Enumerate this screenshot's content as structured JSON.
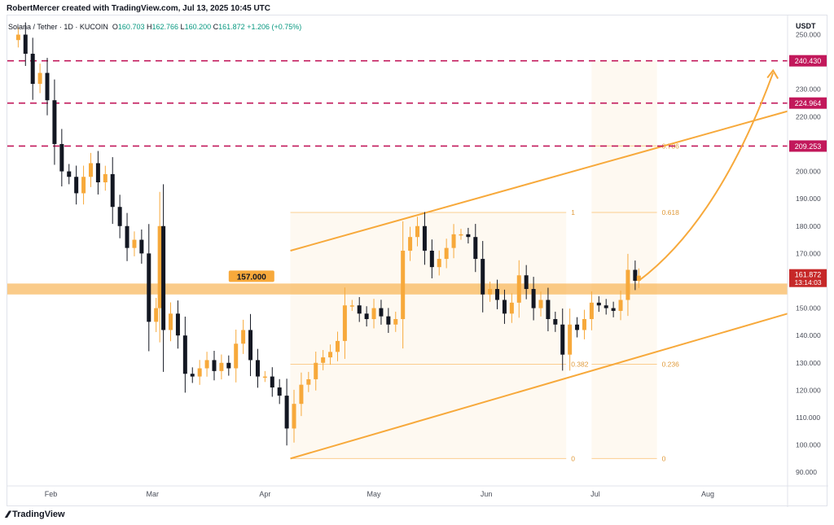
{
  "header": {
    "credit": "RobertMercer created with TradingView.com, Jul 13, 2025 10:45 UTC"
  },
  "symbol": {
    "name": "Solana / Tether · 1D · KUCOIN",
    "o_label": "O",
    "o": "160.703",
    "h_label": "H",
    "h": "162.766",
    "l_label": "L",
    "l": "160.200",
    "c_label": "C",
    "c": "161.872",
    "change": "+1.206 (+0.75%)"
  },
  "footer": {
    "brand": "TradingView"
  },
  "colors": {
    "accent": "#f7a93b",
    "bull": "#f7a93b",
    "bear": "#131722",
    "resistance": "#c2185b",
    "price_tag": "#c62828"
  },
  "chart_data": {
    "type": "candlestick",
    "currency_label": "USDT",
    "y_ticks": [
      90,
      100,
      110,
      120,
      130,
      140,
      150,
      160,
      170,
      180,
      190,
      200,
      210,
      220,
      230,
      240,
      250
    ],
    "ylim": [
      85,
      257
    ],
    "x_ticks": [
      {
        "label": "Feb",
        "date": "2025-02-01"
      },
      {
        "label": "Mar",
        "date": "2025-03-01"
      },
      {
        "label": "Apr",
        "date": "2025-04-01"
      },
      {
        "label": "May",
        "date": "2025-05-01"
      },
      {
        "label": "Jun",
        "date": "2025-06-01"
      },
      {
        "label": "Jul",
        "date": "2025-07-01"
      },
      {
        "label": "Aug",
        "date": "2025-08-01"
      }
    ],
    "x_range": [
      "2025-01-20",
      "2025-08-23"
    ],
    "closes": [
      {
        "date": "2025-01-20",
        "close": 248
      },
      {
        "date": "2025-01-23",
        "close": 250
      },
      {
        "date": "2025-01-25",
        "close": 243
      },
      {
        "date": "2025-01-27",
        "close": 232
      },
      {
        "date": "2025-01-29",
        "close": 236
      },
      {
        "date": "2025-01-31",
        "close": 226
      },
      {
        "date": "2025-02-02",
        "close": 210
      },
      {
        "date": "2025-02-04",
        "close": 200
      },
      {
        "date": "2025-02-06",
        "close": 198
      },
      {
        "date": "2025-02-08",
        "close": 192
      },
      {
        "date": "2025-02-10",
        "close": 198
      },
      {
        "date": "2025-02-12",
        "close": 203
      },
      {
        "date": "2025-02-14",
        "close": 196
      },
      {
        "date": "2025-02-16",
        "close": 199
      },
      {
        "date": "2025-02-18",
        "close": 187
      },
      {
        "date": "2025-02-20",
        "close": 180
      },
      {
        "date": "2025-02-22",
        "close": 172
      },
      {
        "date": "2025-02-24",
        "close": 175
      },
      {
        "date": "2025-02-26",
        "close": 170
      },
      {
        "date": "2025-02-28",
        "close": 145
      },
      {
        "date": "2025-03-02",
        "close": 150
      },
      {
        "date": "2025-03-03",
        "close": 180
      },
      {
        "date": "2025-03-04",
        "close": 142
      },
      {
        "date": "2025-03-06",
        "close": 148
      },
      {
        "date": "2025-03-08",
        "close": 140
      },
      {
        "date": "2025-03-10",
        "close": 126
      },
      {
        "date": "2025-03-12",
        "close": 125
      },
      {
        "date": "2025-03-14",
        "close": 128
      },
      {
        "date": "2025-03-16",
        "close": 131
      },
      {
        "date": "2025-03-18",
        "close": 127
      },
      {
        "date": "2025-03-20",
        "close": 130
      },
      {
        "date": "2025-03-22",
        "close": 128
      },
      {
        "date": "2025-03-24",
        "close": 137
      },
      {
        "date": "2025-03-26",
        "close": 142
      },
      {
        "date": "2025-03-28",
        "close": 131
      },
      {
        "date": "2025-03-30",
        "close": 125
      },
      {
        "date": "2025-04-01",
        "close": 125
      },
      {
        "date": "2025-04-03",
        "close": 121
      },
      {
        "date": "2025-04-05",
        "close": 118
      },
      {
        "date": "2025-04-07",
        "close": 106
      },
      {
        "date": "2025-04-09",
        "close": 115
      },
      {
        "date": "2025-04-11",
        "close": 122
      },
      {
        "date": "2025-04-13",
        "close": 124
      },
      {
        "date": "2025-04-15",
        "close": 130
      },
      {
        "date": "2025-04-17",
        "close": 132
      },
      {
        "date": "2025-04-19",
        "close": 134
      },
      {
        "date": "2025-04-21",
        "close": 138
      },
      {
        "date": "2025-04-23",
        "close": 151
      },
      {
        "date": "2025-04-25",
        "close": 151
      },
      {
        "date": "2025-04-27",
        "close": 148
      },
      {
        "date": "2025-04-29",
        "close": 146
      },
      {
        "date": "2025-05-01",
        "close": 150
      },
      {
        "date": "2025-05-03",
        "close": 147
      },
      {
        "date": "2025-05-05",
        "close": 144
      },
      {
        "date": "2025-05-07",
        "close": 146
      },
      {
        "date": "2025-05-09",
        "close": 171
      },
      {
        "date": "2025-05-11",
        "close": 176
      },
      {
        "date": "2025-05-13",
        "close": 180
      },
      {
        "date": "2025-05-15",
        "close": 171
      },
      {
        "date": "2025-05-17",
        "close": 165
      },
      {
        "date": "2025-05-19",
        "close": 168
      },
      {
        "date": "2025-05-21",
        "close": 172
      },
      {
        "date": "2025-05-23",
        "close": 177
      },
      {
        "date": "2025-05-25",
        "close": 177
      },
      {
        "date": "2025-05-27",
        "close": 176
      },
      {
        "date": "2025-05-29",
        "close": 168
      },
      {
        "date": "2025-05-31",
        "close": 155
      },
      {
        "date": "2025-06-02",
        "close": 157
      },
      {
        "date": "2025-06-04",
        "close": 153
      },
      {
        "date": "2025-06-06",
        "close": 148
      },
      {
        "date": "2025-06-08",
        "close": 152
      },
      {
        "date": "2025-06-10",
        "close": 162
      },
      {
        "date": "2025-06-12",
        "close": 157
      },
      {
        "date": "2025-06-14",
        "close": 150
      },
      {
        "date": "2025-06-16",
        "close": 153
      },
      {
        "date": "2025-06-18",
        "close": 146
      },
      {
        "date": "2025-06-20",
        "close": 144
      },
      {
        "date": "2025-06-22",
        "close": 133
      },
      {
        "date": "2025-06-24",
        "close": 144
      },
      {
        "date": "2025-06-26",
        "close": 142
      },
      {
        "date": "2025-06-28",
        "close": 146
      },
      {
        "date": "2025-06-30",
        "close": 152
      },
      {
        "date": "2025-07-02",
        "close": 151
      },
      {
        "date": "2025-07-04",
        "close": 150
      },
      {
        "date": "2025-07-06",
        "close": 149
      },
      {
        "date": "2025-07-08",
        "close": 153
      },
      {
        "date": "2025-07-10",
        "close": 164
      },
      {
        "date": "2025-07-12",
        "close": 160
      },
      {
        "date": "2025-07-13",
        "close": 161.872
      }
    ],
    "support_zone": {
      "low": 155,
      "high": 159,
      "label": "157.000"
    },
    "resistance_levels": [
      240.43,
      224.964,
      209.253
    ],
    "current_price": {
      "value": "161.872",
      "countdown": "13:14:03"
    },
    "channel_upper": [
      {
        "date": "2025-04-08",
        "price": 171
      },
      {
        "date": "2025-08-23",
        "price": 222
      }
    ],
    "channel_lower": [
      {
        "date": "2025-04-08",
        "price": 95
      },
      {
        "date": "2025-08-23",
        "price": 148
      }
    ],
    "fib_left": {
      "from": "2025-04-08",
      "to": "2025-06-23",
      "top": 185,
      "bottom": 95,
      "levels": [
        {
          "label": "1",
          "price": 185
        },
        {
          "label": "0.382",
          "price": 129.5
        },
        {
          "label": "0",
          "price": 95
        }
      ]
    },
    "fib_right": {
      "from": "2025-06-30",
      "to": "2025-07-18",
      "top": 240.43,
      "bottom": 95,
      "levels": [
        {
          "label": "0.786",
          "price": 209.3
        },
        {
          "label": "0.618",
          "price": 185
        },
        {
          "label": "0.236",
          "price": 129.5
        },
        {
          "label": "0",
          "price": 95
        }
      ]
    },
    "projection_arrow": [
      {
        "date": "2025-07-13",
        "price": 160
      },
      {
        "date": "2025-08-04",
        "price": 182
      },
      {
        "date": "2025-08-19",
        "price": 236
      }
    ]
  }
}
